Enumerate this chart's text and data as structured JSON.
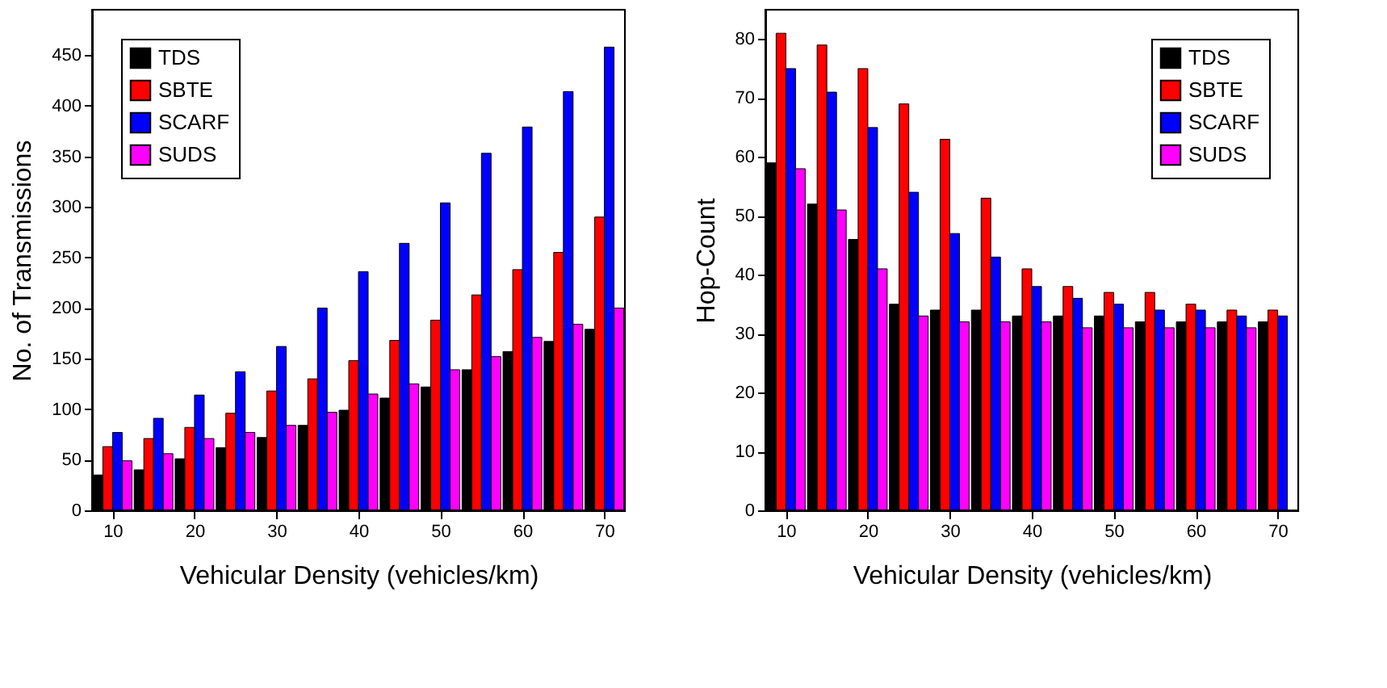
{
  "chart_data": [
    {
      "type": "bar",
      "xlabel": "Vehicular Density (vehicles/km)",
      "ylabel": "No. of Transmissions",
      "x": [
        10,
        15,
        20,
        25,
        30,
        35,
        40,
        45,
        50,
        55,
        60,
        65,
        70
      ],
      "xlim": [
        7.5,
        72.5
      ],
      "xticks": [
        10,
        20,
        30,
        40,
        50,
        60,
        70
      ],
      "ylim": [
        0,
        495
      ],
      "yticks": [
        0,
        50,
        100,
        150,
        200,
        250,
        300,
        350,
        400,
        450
      ],
      "legend": "top left",
      "grid": false,
      "series": [
        {
          "name": "TDS",
          "color": "#000000",
          "values": [
            35,
            40,
            51,
            62,
            72,
            84,
            99,
            111,
            122,
            139,
            157,
            167,
            179
          ]
        },
        {
          "name": "SBTE",
          "color": "#ff0000",
          "values": [
            63,
            71,
            82,
            96,
            118,
            130,
            148,
            168,
            188,
            213,
            238,
            255,
            290
          ]
        },
        {
          "name": "SCARF",
          "color": "#0000ff",
          "values": [
            77,
            91,
            114,
            137,
            162,
            200,
            236,
            264,
            304,
            353,
            379,
            414,
            458
          ]
        },
        {
          "name": "SUDS",
          "color": "#ff00ff",
          "values": [
            49,
            56,
            71,
            77,
            84,
            97,
            115,
            125,
            139,
            152,
            171,
            184,
            200
          ]
        }
      ]
    },
    {
      "type": "bar",
      "xlabel": "Vehicular Density (vehicles/km)",
      "ylabel": "Hop-Count",
      "x": [
        10,
        15,
        20,
        25,
        30,
        35,
        40,
        45,
        50,
        55,
        60,
        65,
        70
      ],
      "xlim": [
        7.5,
        72.5
      ],
      "xticks": [
        10,
        20,
        30,
        40,
        50,
        60,
        70
      ],
      "ylim": [
        0,
        85
      ],
      "yticks": [
        0,
        10,
        20,
        30,
        40,
        50,
        60,
        70,
        80
      ],
      "legend": "top right",
      "grid": false,
      "series": [
        {
          "name": "TDS",
          "color": "#000000",
          "values": [
            59,
            52,
            46,
            35,
            34,
            34,
            33,
            33,
            33,
            32,
            32,
            32,
            32
          ]
        },
        {
          "name": "SBTE",
          "color": "#ff0000",
          "values": [
            81,
            79,
            75,
            69,
            63,
            53,
            41,
            38,
            37,
            37,
            35,
            34,
            34
          ]
        },
        {
          "name": "SCARF",
          "color": "#0000ff",
          "values": [
            75,
            71,
            65,
            54,
            47,
            43,
            38,
            36,
            35,
            34,
            34,
            33,
            33
          ]
        },
        {
          "name": "SUDS",
          "color": "#ff00ff",
          "values": [
            58,
            51,
            41,
            33,
            32,
            32,
            32,
            31,
            31,
            31,
            31,
            31,
            null
          ]
        }
      ]
    }
  ]
}
